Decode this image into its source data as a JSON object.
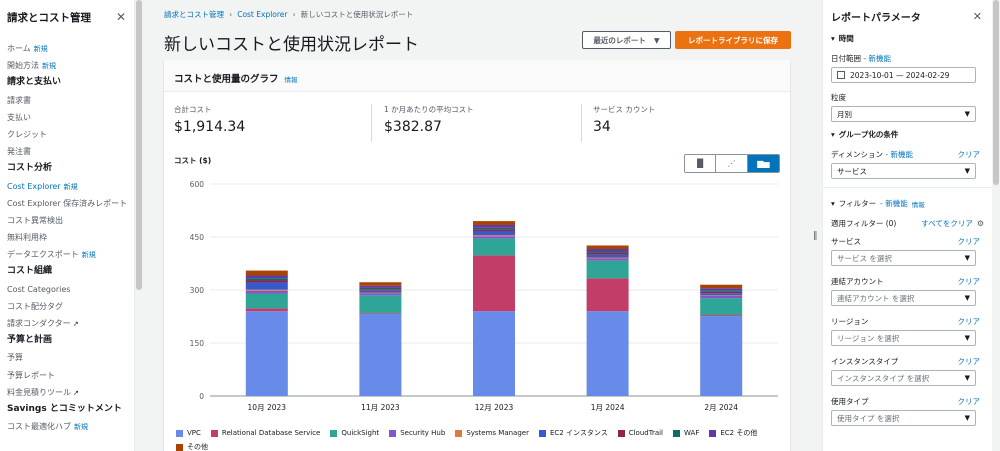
{
  "sidebar": {
    "title": "請求とコスト管理",
    "items": [
      {
        "type": "item",
        "label": "ホーム",
        "badge": "新規"
      },
      {
        "type": "item",
        "label": "開始方法",
        "badge": "新規"
      },
      {
        "type": "section",
        "label": "請求と支払い"
      },
      {
        "type": "item",
        "label": "請求書"
      },
      {
        "type": "item",
        "label": "支払い"
      },
      {
        "type": "item",
        "label": "クレジット"
      },
      {
        "type": "item",
        "label": "発注書"
      },
      {
        "type": "section",
        "label": "コスト分析"
      },
      {
        "type": "item",
        "label": "Cost Explorer",
        "badge": "新規",
        "active": true
      },
      {
        "type": "item",
        "label": "Cost Explorer 保存済みレポート"
      },
      {
        "type": "item",
        "label": "コスト異常検出"
      },
      {
        "type": "item",
        "label": "無料利用枠"
      },
      {
        "type": "item",
        "label": "データエクスポート",
        "badge": "新規"
      },
      {
        "type": "section",
        "label": "コスト組織"
      },
      {
        "type": "item",
        "label": "Cost Categories"
      },
      {
        "type": "item",
        "label": "コスト配分タグ"
      },
      {
        "type": "item",
        "label": "請求コンダクター",
        "external": true
      },
      {
        "type": "section",
        "label": "予算と計画"
      },
      {
        "type": "item",
        "label": "予算"
      },
      {
        "type": "item",
        "label": "予算レポート"
      },
      {
        "type": "item",
        "label": "料金見積りツール",
        "external": true
      },
      {
        "type": "section",
        "label": "Savings とコミットメント"
      },
      {
        "type": "item",
        "label": "コスト最適化ハブ",
        "badge": "新規"
      }
    ]
  },
  "breadcrumb": {
    "root": "請求とコスト管理",
    "middle": "Cost Explorer",
    "current": "新しいコストと使用状況レポート"
  },
  "page_title": "新しいコストと使用状況レポート",
  "buttons": {
    "recent_reports": "最近のレポート",
    "save_to_library": "レポートライブラリに保存"
  },
  "panel": {
    "title": "コストと使用量のグラフ",
    "info": "情報",
    "stats": [
      {
        "label": "合計コスト",
        "value": "$1,914.34"
      },
      {
        "label": "1 か月あたりの平均コスト",
        "value": "$382.87"
      },
      {
        "label": "サービス カウント",
        "value": "34"
      }
    ],
    "chart_label": "コスト ($)"
  },
  "chart_data": {
    "type": "bar",
    "stacked": true,
    "categories": [
      "10月 2023",
      "11月 2023",
      "12月 2023",
      "1月 2024",
      "2月 2024"
    ],
    "ylim": [
      0,
      600
    ],
    "yticks": [
      0,
      150,
      300,
      450,
      600
    ],
    "grid": true,
    "legend_position": "bottom",
    "series": [
      {
        "name": "VPC",
        "color": "#688ae8",
        "values": [
          240,
          233,
          240,
          240,
          226
        ]
      },
      {
        "name": "Relational Database Service",
        "color": "#c33d69",
        "values": [
          8,
          2,
          158,
          93,
          3
        ]
      },
      {
        "name": "QuickSight",
        "color": "#2ea597",
        "values": [
          42,
          50,
          48,
          50,
          48
        ]
      },
      {
        "name": "Security Hub",
        "color": "#8456ce",
        "values": [
          8,
          5,
          6,
          6,
          6
        ]
      },
      {
        "name": "Systems Manager",
        "color": "#e07941",
        "values": [
          3,
          2,
          3,
          3,
          2
        ]
      },
      {
        "name": "EC2 インスタンス",
        "color": "#3759ce",
        "values": [
          20,
          6,
          12,
          8,
          6
        ]
      },
      {
        "name": "CloudTrail",
        "color": "#962249",
        "values": [
          6,
          4,
          5,
          5,
          4
        ]
      },
      {
        "name": "WAF",
        "color": "#096f64",
        "values": [
          6,
          4,
          4,
          4,
          4
        ]
      },
      {
        "name": "EC2 その他",
        "color": "#6237a7",
        "values": [
          8,
          6,
          8,
          7,
          6
        ]
      },
      {
        "name": "その他",
        "color": "#a84401",
        "values": [
          14,
          10,
          11,
          10,
          10
        ]
      }
    ]
  },
  "toggle": {
    "icons": [
      "bar-chart-icon",
      "scatter-chart-icon",
      "stacked-bar-chart-icon"
    ],
    "active": 2
  },
  "right_panel": {
    "title": "レポートパラメータ",
    "time_section": "時間",
    "date_range_label": "日付範囲",
    "date_range_new": "- 新機能",
    "date_range_value": "2023-10-01 — 2024-02-29",
    "granularity_label": "粒度",
    "granularity_value": "月別",
    "group_section": "グループ化の条件",
    "dimension_label": "ディメンション",
    "dimension_new": "- 新機能",
    "dimension_clear": "クリア",
    "dimension_value": "サービス",
    "filter_section": "フィルター",
    "filter_new": "- 新機能",
    "filter_info": "情報",
    "applied_filters": "適用フィルター (0)",
    "clear_all": "すべてをクリア",
    "filters": [
      {
        "label": "サービス",
        "clear": "クリア",
        "placeholder": "サービス を選択"
      },
      {
        "label": "連結アカウント",
        "clear": "クリア",
        "placeholder": "連結アカウント を選択"
      },
      {
        "label": "リージョン",
        "clear": "クリア",
        "placeholder": "リージョン を選択"
      },
      {
        "label": "インスタンスタイプ",
        "clear": "クリア",
        "placeholder": "インスタンスタイプ を選択"
      },
      {
        "label": "使用タイプ",
        "clear": "クリア",
        "placeholder": "使用タイプ を選択"
      }
    ]
  }
}
